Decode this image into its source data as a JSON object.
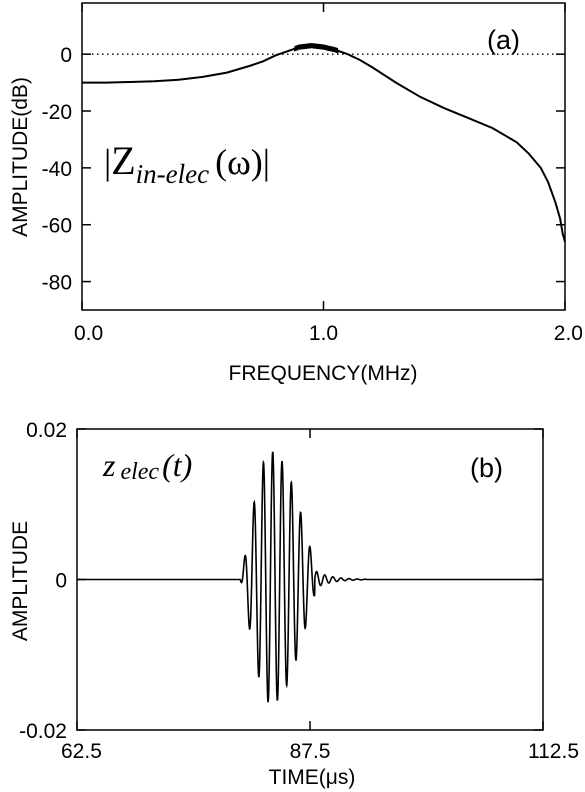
{
  "chart_data": [
    {
      "type": "line",
      "panel_label": "(a)",
      "xlabel": "FREQUENCY(MHz)",
      "ylabel": "AMPLITUDE(dB)",
      "xlim": [
        0.0,
        2.0
      ],
      "ylim": [
        -90,
        18
      ],
      "xticks": [
        0.0,
        1.0,
        2.0
      ],
      "xtick_labels": [
        "0.0",
        "1.0",
        "2.0"
      ],
      "yticks": [
        0,
        -20,
        -40,
        -60,
        -80
      ],
      "ytick_labels": [
        "0",
        "-20",
        "-40",
        "-60",
        "-80"
      ],
      "reference_line": {
        "y": 0,
        "style": "dotted"
      },
      "annotation": {
        "bars": "|",
        "main": "Z",
        "sub": "in-elec",
        "arg": "(ω)"
      },
      "series": [
        {
          "x": [
            0.0,
            0.1,
            0.2,
            0.3,
            0.4,
            0.5,
            0.6,
            0.7,
            0.75,
            0.8,
            0.85,
            0.9,
            0.95,
            1.0,
            1.05,
            1.1,
            1.15,
            1.2,
            1.3,
            1.4,
            1.5,
            1.6,
            1.7,
            1.8,
            1.85,
            1.9,
            1.93,
            1.96,
            1.98,
            1.99,
            2.0
          ],
          "y": [
            -10,
            -10,
            -9.8,
            -9.5,
            -9,
            -8,
            -6.5,
            -4,
            -2.5,
            -0.5,
            1,
            2.5,
            3,
            2.5,
            1.5,
            0,
            -2,
            -4.5,
            -10,
            -15,
            -19,
            -22.5,
            -26,
            -31,
            -35,
            -40,
            -45,
            -52,
            -58,
            -63,
            -66
          ]
        }
      ]
    },
    {
      "type": "line",
      "panel_label": "(b)",
      "xlabel": "TIME(μs)",
      "ylabel": "AMPLITUDE",
      "xlim": [
        62.5,
        112.5
      ],
      "ylim": [
        -0.02,
        0.02
      ],
      "xticks": [
        62.5,
        87.5,
        112.5
      ],
      "xtick_labels": [
        "62.5",
        "87.5",
        "112.5"
      ],
      "yticks": [
        0.02,
        0,
        -0.02
      ],
      "ytick_labels": [
        "0.02",
        "0",
        "-0.02"
      ],
      "annotation": {
        "main": "z",
        "sub": "elec",
        "arg": "(t)"
      },
      "series": [
        {
          "signal": "tone burst",
          "onset": 80.0,
          "peak_time": 83.3,
          "peak_amplitude": 0.017,
          "min_amplitude": -0.0165,
          "cycles_per_us": 1.0,
          "main_end": 88.0,
          "tail_end": 93.5,
          "tail_amplitude": 0.0012
        }
      ]
    }
  ]
}
